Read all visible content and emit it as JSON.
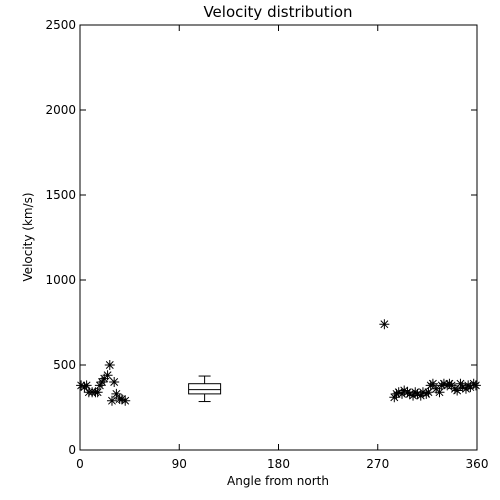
{
  "chart_data": {
    "type": "scatter",
    "title": "Velocity distribution",
    "xlabel": "Angle from north",
    "ylabel": "Velocity (km/s)",
    "xlim": [
      0,
      360
    ],
    "ylim": [
      0,
      2500
    ],
    "xticks": [
      0,
      90,
      180,
      270,
      360
    ],
    "yticks": [
      0,
      500,
      1000,
      1500,
      2000,
      2500
    ],
    "grid": false,
    "series": [
      {
        "marker": "asterisk",
        "x": [
          1,
          4,
          6,
          8,
          11,
          14,
          16,
          18,
          20,
          22,
          25,
          27,
          29,
          31,
          33,
          36,
          38,
          41,
          276,
          285,
          287,
          289,
          292,
          294,
          297,
          299,
          302,
          304,
          306,
          309,
          311,
          314,
          316,
          318,
          320,
          323,
          326,
          328,
          330,
          333,
          335,
          337,
          340,
          342,
          345,
          347,
          350,
          352,
          354,
          357,
          359
        ],
        "y": [
          380,
          370,
          380,
          340,
          340,
          340,
          340,
          380,
          400,
          420,
          440,
          500,
          290,
          400,
          330,
          300,
          300,
          290,
          740,
          310,
          330,
          340,
          330,
          350,
          340,
          330,
          320,
          340,
          330,
          320,
          340,
          330,
          340,
          380,
          390,
          360,
          340,
          380,
          390,
          380,
          390,
          380,
          360,
          350,
          390,
          370,
          360,
          380,
          370,
          390,
          380
        ]
      }
    ],
    "box": {
      "x": 113,
      "whisker_low": 285,
      "q1": 330,
      "median": 355,
      "q3": 390,
      "whisker_high": 435
    }
  }
}
